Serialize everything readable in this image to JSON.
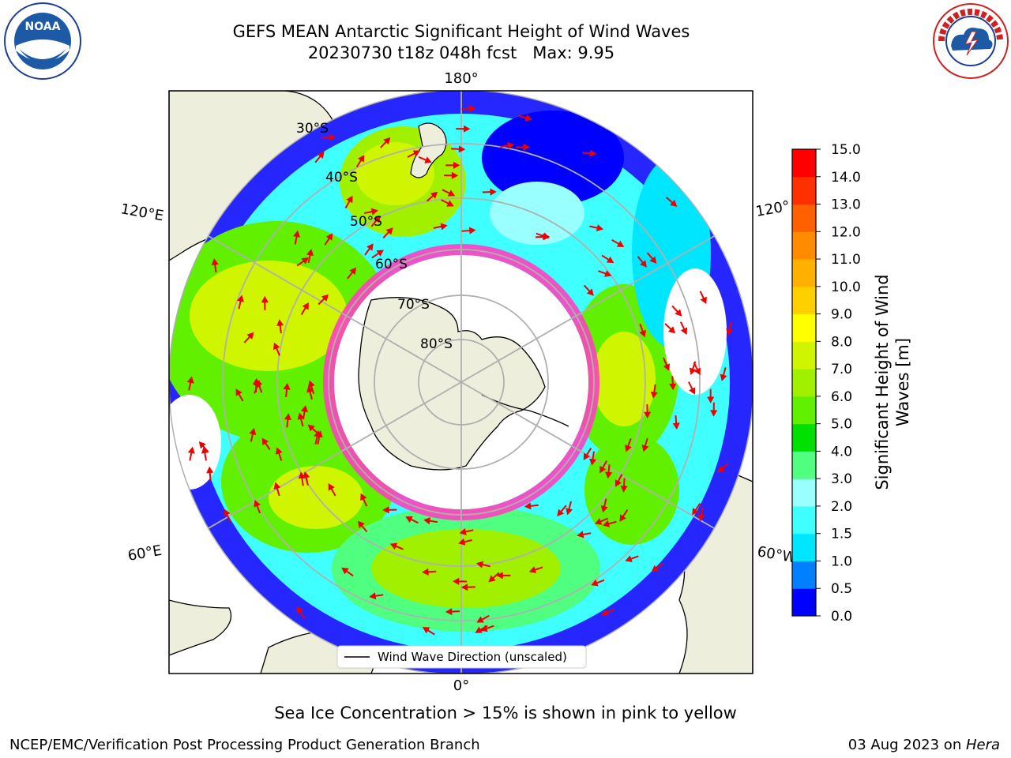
{
  "header": {
    "title_line1": "GEFS MEAN Antarctic Significant Height of Wind Waves",
    "title_line2": "20230730 t18z 048h fcst   Max: 9.95"
  },
  "logos": {
    "left": "NOAA",
    "left_ring_text": "NATIONAL OCEANIC AND ATMOSPHERIC ADMINISTRATION · U.S. DEPARTMENT OF COMMERCE",
    "right_ring_text": "NATIONAL WEATHER SERVICE"
  },
  "map": {
    "lat_labels": [
      "30°S",
      "40°S",
      "50°S",
      "60°S",
      "70°S",
      "80°S"
    ],
    "lon_labels": {
      "top": "180°",
      "bottom": "0°",
      "left_upper": "120°E",
      "left_lower": "60°E",
      "right_upper": "120°",
      "right_lower": "60°W"
    },
    "legend_label": "Wind Wave Direction (unscaled)"
  },
  "colorbar": {
    "label_line1": "Significant Height of Wind",
    "label_line2": "Waves [m]",
    "ticks": [
      "0.0",
      "0.5",
      "1.0",
      "1.5",
      "2.0",
      "3.0",
      "4.0",
      "5.0",
      "6.0",
      "7.0",
      "8.0",
      "9.0",
      "10.0",
      "11.0",
      "12.0",
      "13.0",
      "14.0",
      "15.0"
    ],
    "colors": [
      "#0000ff",
      "#0080ff",
      "#00e6ff",
      "#40ffff",
      "#99ffff",
      "#50ff80",
      "#00e000",
      "#60f000",
      "#a0f000",
      "#d0f500",
      "#ffff00",
      "#ffd000",
      "#ffb000",
      "#ff8c00",
      "#ff6000",
      "#ff3000",
      "#ff0000"
    ]
  },
  "footer": {
    "caption": "Sea Ice Concentration > 15% is shown in pink to yellow",
    "left": "NCEP/EMC/Verification Post Processing Product Generation Branch",
    "right_date": "03 Aug 2023 on ",
    "right_machine": "Hera"
  }
}
